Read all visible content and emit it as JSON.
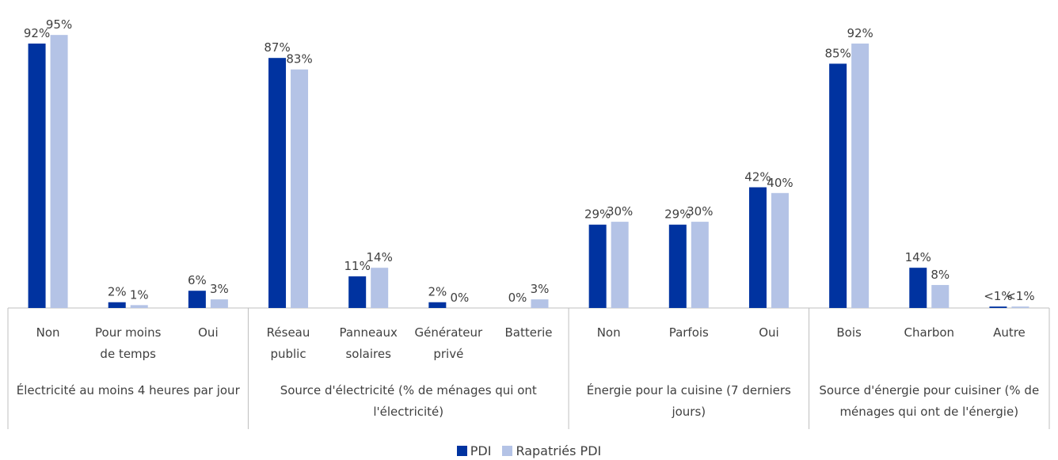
{
  "chart_data": {
    "type": "bar",
    "groups": [
      {
        "name": "Électricité au moins 4 heures par jour",
        "categories": [
          "Non",
          "Pour moins de temps",
          "Oui"
        ]
      },
      {
        "name": "Source d'électricité (% de ménages qui ont l'électricité)",
        "categories": [
          "Réseau public",
          "Panneaux solaires",
          "Générateur privé",
          "Batterie"
        ]
      },
      {
        "name": "Énergie pour la cuisine (7 derniers jours)",
        "categories": [
          "Non",
          "Parfois",
          "Oui"
        ]
      },
      {
        "name": "Source d'énergie pour cuisiner (% de ménages qui ont de l'énergie)",
        "categories": [
          "Bois",
          "Charbon",
          "Autre"
        ]
      }
    ],
    "series": [
      {
        "name": "PDI",
        "color": "#0033a0",
        "values": [
          92,
          2,
          6,
          87,
          11,
          2,
          0,
          29,
          29,
          42,
          85,
          14,
          0.5
        ],
        "value_labels": [
          "92%",
          "2%",
          "6%",
          "87%",
          "11%",
          "2%",
          "0%",
          "29%",
          "29%",
          "42%",
          "85%",
          "14%",
          "<1%"
        ]
      },
      {
        "name": "Rapatriés PDI",
        "color": "#b4c3e6",
        "values": [
          95,
          1,
          3,
          83,
          14,
          0,
          3,
          30,
          30,
          40,
          92,
          8,
          0.5
        ],
        "value_labels": [
          "95%",
          "1%",
          "3%",
          "83%",
          "14%",
          "0%",
          "3%",
          "30%",
          "30%",
          "40%",
          "92%",
          "8%",
          "<1%"
        ]
      }
    ],
    "ylim": [
      0,
      100
    ]
  }
}
